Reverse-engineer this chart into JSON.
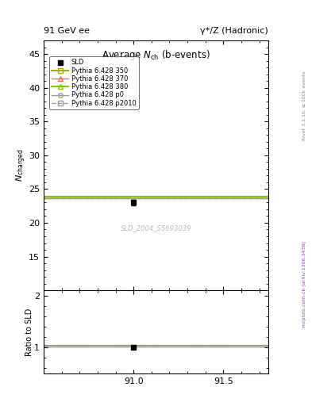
{
  "title_left": "91 GeV ee",
  "title_right": "γ*/Z (Hadronic)",
  "ylabel_main": "N_charged",
  "ylabel_ratio": "Ratio to SLD",
  "plot_title": "Average N_{ch} (b-events)",
  "watermark": "SLD_2004_S5693039",
  "right_label_top": "Rivet 3.1.10, ≥ 100k events",
  "right_label_bottom": "mcplots.cern.ch [arXiv:1306.3436]",
  "xlim": [
    90.5,
    91.75
  ],
  "xticks": [
    91.0,
    91.5
  ],
  "ylim_main": [
    10.0,
    47.0
  ],
  "yticks_main": [
    15,
    20,
    25,
    30,
    35,
    40,
    45
  ],
  "ylim_ratio": [
    0.5,
    2.1
  ],
  "yticks_ratio": [
    1.0,
    2.0
  ],
  "data_point_x": 91.0,
  "data_point_y": 23.0,
  "data_point_yerr": 0.4,
  "data_label": "SLD",
  "lines": [
    {
      "label": "Pythia 6.428 350",
      "y": 23.85,
      "color": "#aaaa00",
      "style": "-",
      "marker": "s",
      "lw": 1.5
    },
    {
      "label": "Pythia 6.428 370",
      "y": 23.85,
      "color": "#ff6666",
      "style": "-",
      "marker": "^",
      "lw": 1.0
    },
    {
      "label": "Pythia 6.428 380",
      "y": 23.9,
      "color": "#88cc00",
      "style": "-",
      "marker": "^",
      "lw": 1.5
    },
    {
      "label": "Pythia 6.428 p0",
      "y": 23.65,
      "color": "#999999",
      "style": "-",
      "marker": "o",
      "lw": 1.0
    },
    {
      "label": "Pythia 6.428 p2010",
      "y": 23.65,
      "color": "#999999",
      "style": "--",
      "marker": "s",
      "lw": 1.0
    }
  ],
  "band_color": "#ccdd00",
  "band_alpha": 0.5,
  "band_ylo": 23.7,
  "band_yhi": 24.0
}
